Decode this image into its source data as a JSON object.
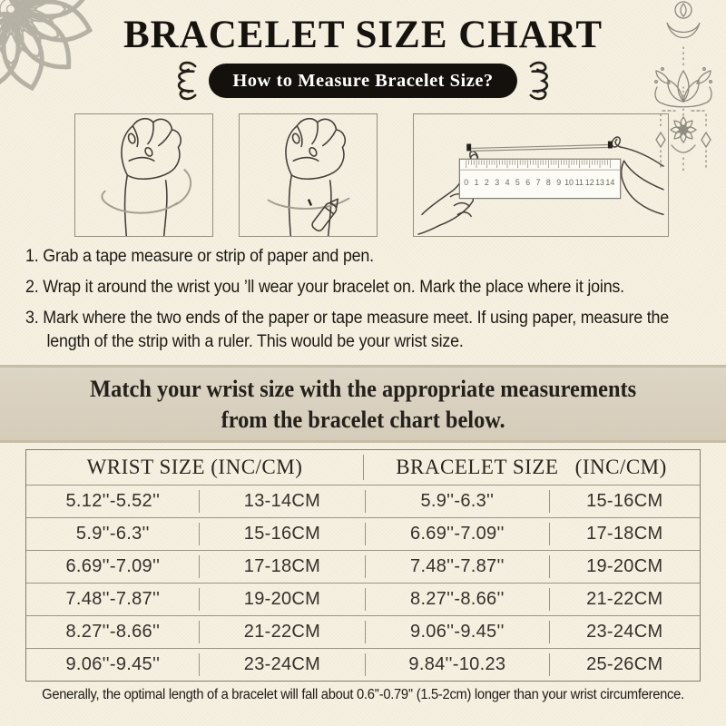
{
  "colors": {
    "background": "#f6f1e2",
    "banner_bg": "#d9d0bf",
    "banner_edge": "#c6bda6",
    "pill_bg": "#14110c",
    "pill_text": "#ffffff",
    "table_line": "#9b9484",
    "ornament_gray": "#8b887e"
  },
  "header": {
    "title": "BRACELET SIZE CHART",
    "badge": "How to Measure Bracelet Size?"
  },
  "decorations": {
    "top_left": "mandala-flower-ornament",
    "top_right": "lotus-hanging-ornament",
    "badge_left": "curly-flourish",
    "badge_right": "curly-flourish"
  },
  "illustrations": [
    {
      "name": "fist-with-tape-around-wrist"
    },
    {
      "name": "fist-with-pen-marking-wrist"
    },
    {
      "name": "hands-measuring-strip-with-ruler",
      "ruler_numbers": [
        "0",
        "1",
        "2",
        "3",
        "4",
        "5",
        "6",
        "7",
        "8",
        "9",
        "10",
        "11",
        "12",
        "13",
        "14"
      ]
    }
  ],
  "steps": [
    {
      "num": "1.",
      "text": "Grab a tape measure or strip of paper and pen."
    },
    {
      "num": "2.",
      "text": "Wrap it around the wrist you ’ll wear your bracelet on. Mark the place where it joins."
    },
    {
      "num": "3.",
      "text": "Mark where the two ends of the paper or tape measure meet. If using paper, measure the length of the strip with a ruler. This would be your wrist size."
    }
  ],
  "banner": {
    "line1": "Match your wrist size with the appropriate measurements",
    "line2": "from the bracelet chart below."
  },
  "table": {
    "headers": [
      "WRIST SIZE (INC/CM)",
      "BRACELET SIZE  (INC/CM)"
    ],
    "rows": [
      [
        "5.12''-5.52''",
        "13-14CM",
        "5.9''-6.3''",
        "15-16CM"
      ],
      [
        "5.9''-6.3''",
        "15-16CM",
        "6.69''-7.09''",
        "17-18CM"
      ],
      [
        "6.69''-7.09''",
        "17-18CM",
        "7.48''-7.87''",
        "19-20CM"
      ],
      [
        "7.48''-7.87''",
        "19-20CM",
        "8.27''-8.66''",
        "21-22CM"
      ],
      [
        "8.27''-8.66''",
        "21-22CM",
        "9.06''-9.45''",
        "23-24CM"
      ],
      [
        "9.06''-9.45''",
        "23-24CM",
        "9.84''-10.23",
        "25-26CM"
      ]
    ]
  },
  "footer": "Generally, the optimal length of a bracelet will fall about 0.6''-0.79'' (1.5-2cm) longer than your wrist circumference.",
  "chart_data": {
    "type": "table",
    "columns": [
      "Wrist size (inches)",
      "Wrist size (cm)",
      "Bracelet size (inches)",
      "Bracelet size (cm)"
    ],
    "rows": [
      [
        "5.12''-5.52''",
        "13-14CM",
        "5.9''-6.3''",
        "15-16CM"
      ],
      [
        "5.9''-6.3''",
        "15-16CM",
        "6.69''-7.09''",
        "17-18CM"
      ],
      [
        "6.69''-7.09''",
        "17-18CM",
        "7.48''-7.87''",
        "19-20CM"
      ],
      [
        "7.48''-7.87''",
        "19-20CM",
        "8.27''-8.66''",
        "21-22CM"
      ],
      [
        "8.27''-8.66''",
        "21-22CM",
        "9.06''-9.45''",
        "23-24CM"
      ],
      [
        "9.06''-9.45''",
        "23-24CM",
        "9.84''-10.23",
        "25-26CM"
      ]
    ]
  }
}
